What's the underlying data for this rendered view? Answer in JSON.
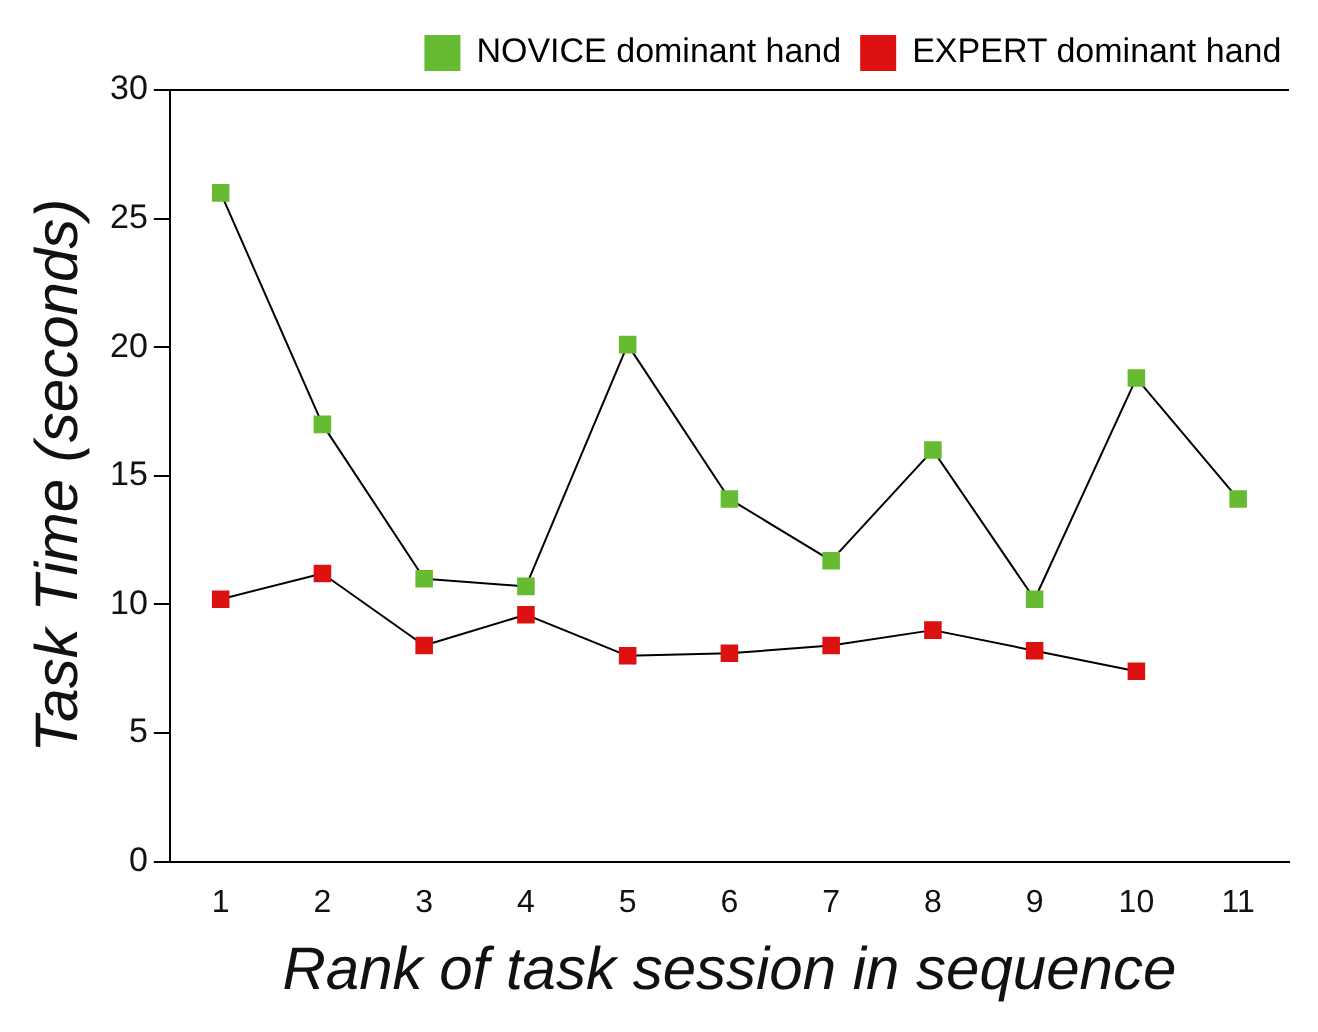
{
  "chart_data": {
    "type": "line",
    "xlabel": "Rank of task session in sequence",
    "ylabel": "Task Time (seconds)",
    "categories": [
      "1",
      "2",
      "3",
      "4",
      "5",
      "6",
      "7",
      "8",
      "9",
      "10",
      "11"
    ],
    "series": [
      {
        "name": "NOVICE dominant hand",
        "color": "#66bb33",
        "values": [
          26,
          17,
          11,
          10.7,
          20.1,
          14.1,
          11.7,
          16,
          10.2,
          18.8,
          14.1
        ]
      },
      {
        "name": "EXPERT dominant hand",
        "color": "#dd1111",
        "values": [
          10.2,
          11.2,
          8.4,
          9.6,
          8.0,
          8.1,
          8.4,
          9.0,
          8.2,
          7.4,
          null
        ]
      }
    ],
    "ylim": [
      0,
      30
    ],
    "yticks": [
      0,
      5,
      10,
      15,
      20,
      25,
      30
    ],
    "grid": false,
    "legend": "top right",
    "marker": "square",
    "line_style": "solid"
  }
}
